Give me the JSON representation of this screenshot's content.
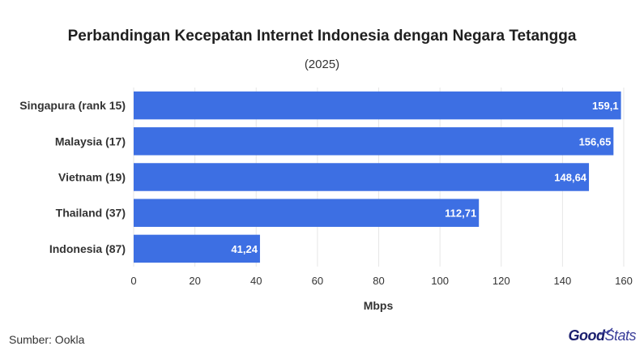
{
  "header": {
    "title": "Perbandingan Kecepatan Internet Indonesia dengan Negara Tetangga",
    "subtitle": "(2025)"
  },
  "footer": {
    "source": "Sumber: Ookla",
    "brand_bold": "Good",
    "brand_light": "Stats"
  },
  "chart_data": {
    "type": "bar",
    "orientation": "horizontal",
    "categories": [
      "Singapura (rank 15)",
      "Malaysia (17)",
      "Vietnam (19)",
      "Thailand (37)",
      "Indonesia (87)"
    ],
    "values": [
      159.1,
      156.65,
      148.64,
      112.71,
      41.24
    ],
    "value_labels": [
      "159,1",
      "156,65",
      "148,64",
      "112,71",
      "41,24"
    ],
    "xlabel": "Mbps",
    "xlim": [
      0,
      160
    ],
    "xticks": [
      0,
      20,
      40,
      60,
      80,
      100,
      120,
      140,
      160
    ],
    "grid": true,
    "bar_color": "#3d6fe3"
  }
}
